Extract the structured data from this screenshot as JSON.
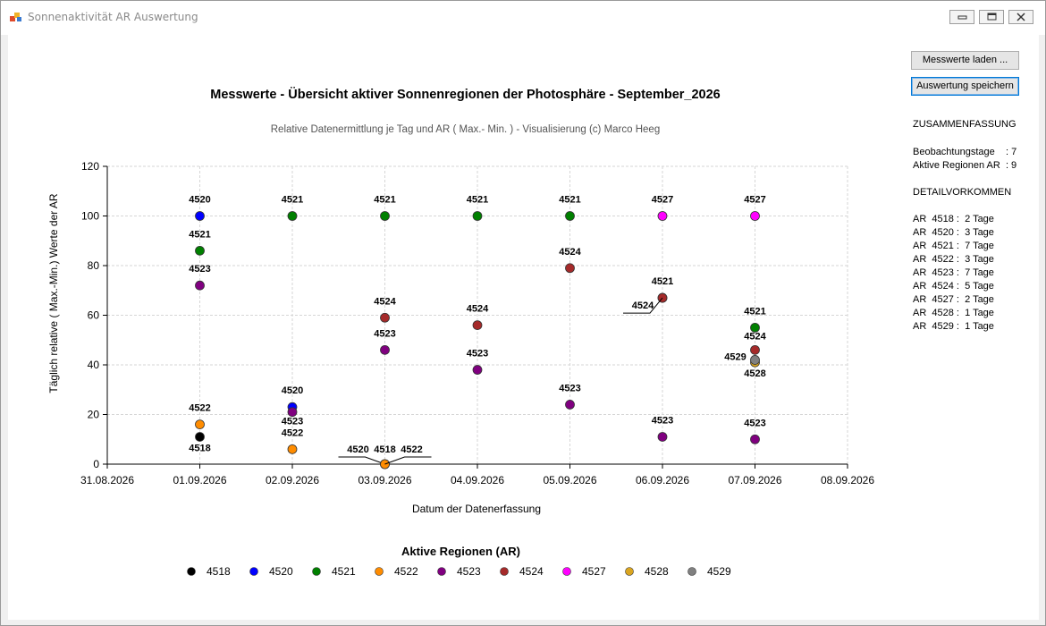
{
  "window": {
    "title": "Sonnenaktivität AR Auswertung",
    "title_icon": "app-icon",
    "controls": [
      "minimize-icon",
      "maximize-icon",
      "close-icon"
    ]
  },
  "buttons": {
    "load_label": "Messwerte laden ...",
    "save_label": "Auswertung speichern"
  },
  "summary": {
    "heading": "ZUSAMMENFASSUNG",
    "beobachtungstage": "Beobachtungstage    : 7",
    "aktive_regionen": "Aktive Regionen AR  : 9",
    "detail_heading": "DETAILVORKOMMEN",
    "details": [
      "AR  4518 :  2 Tage",
      "AR  4520 :  3 Tage",
      "AR  4521 :  7 Tage",
      "AR  4522 :  3 Tage",
      "AR  4523 :  7 Tage",
      "AR  4524 :  5 Tage",
      "AR  4527 :  2 Tage",
      "AR  4528 :  1 Tage",
      "AR  4529 :  1 Tage"
    ]
  },
  "chart_data": {
    "type": "scatter",
    "title": "Messwerte - Übersicht aktiver Sonnenregionen der Photosphäre - September_2026",
    "subtitle": "Relative Datenermittlung je Tag und AR ( Max.- Min. ) - Visualisierung (c) Marco Heeg",
    "xlabel": "Datum der Datenerfassung",
    "ylabel": "Täglich relative ( Max.-Min.) Werte der AR",
    "x_ticks": [
      "31.08.2026",
      "01.09.2026",
      "02.09.2026",
      "03.09.2026",
      "04.09.2026",
      "05.09.2026",
      "06.09.2026",
      "07.09.2026",
      "08.09.2026"
    ],
    "xlim": [
      "31.08.2026",
      "08.09.2026"
    ],
    "ylim": [
      0,
      120
    ],
    "y_ticks": [
      0,
      20,
      40,
      60,
      80,
      100,
      120
    ],
    "grid": true,
    "legend_title": "Aktive Regionen (AR)",
    "legend_position": "bottom",
    "series": [
      {
        "name": "4518",
        "color": "#000000",
        "points": [
          [
            "01.09.2026",
            11
          ],
          [
            "03.09.2026",
            0
          ]
        ]
      },
      {
        "name": "4520",
        "color": "#0000ff",
        "points": [
          [
            "01.09.2026",
            100
          ],
          [
            "02.09.2026",
            23
          ],
          [
            "03.09.2026",
            0
          ]
        ]
      },
      {
        "name": "4521",
        "color": "#008000",
        "points": [
          [
            "01.09.2026",
            86
          ],
          [
            "02.09.2026",
            100
          ],
          [
            "03.09.2026",
            100
          ],
          [
            "04.09.2026",
            100
          ],
          [
            "05.09.2026",
            100
          ],
          [
            "06.09.2026",
            67
          ],
          [
            "07.09.2026",
            55
          ]
        ]
      },
      {
        "name": "4522",
        "color": "#ff8c00",
        "points": [
          [
            "01.09.2026",
            16
          ],
          [
            "02.09.2026",
            6
          ],
          [
            "03.09.2026",
            0
          ]
        ]
      },
      {
        "name": "4523",
        "color": "#800080",
        "points": [
          [
            "01.09.2026",
            72
          ],
          [
            "02.09.2026",
            21
          ],
          [
            "03.09.2026",
            46
          ],
          [
            "04.09.2026",
            38
          ],
          [
            "05.09.2026",
            24
          ],
          [
            "06.09.2026",
            11
          ],
          [
            "07.09.2026",
            10
          ]
        ]
      },
      {
        "name": "4524",
        "color": "#a52a2a",
        "points": [
          [
            "03.09.2026",
            59
          ],
          [
            "04.09.2026",
            56
          ],
          [
            "05.09.2026",
            79
          ],
          [
            "06.09.2026",
            67
          ],
          [
            "07.09.2026",
            46
          ]
        ]
      },
      {
        "name": "4527",
        "color": "#ff00ff",
        "points": [
          [
            "06.09.2026",
            100
          ],
          [
            "07.09.2026",
            100
          ]
        ]
      },
      {
        "name": "4528",
        "color": "#daa520",
        "points": [
          [
            "07.09.2026",
            41
          ]
        ]
      },
      {
        "name": "4529",
        "color": "#808080",
        "points": [
          [
            "07.09.2026",
            42
          ]
        ]
      }
    ]
  }
}
